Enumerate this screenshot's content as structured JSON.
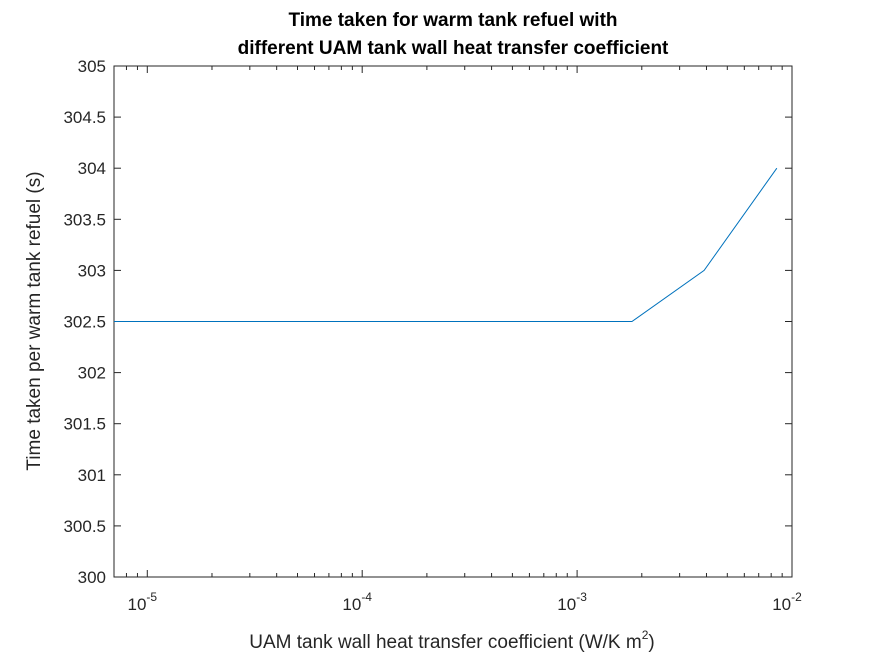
{
  "chart_data": {
    "type": "line",
    "title_lines": [
      "Time taken for warm tank refuel with",
      "different UAM tank wall heat transfer coefficient"
    ],
    "xlabel": "UAM tank wall heat transfer coefficient (W/K m",
    "xlabel_superscript": "2",
    "xlabel_suffix": ")",
    "ylabel": "Time taken per warm tank refuel (s)",
    "xscale": "log",
    "xlim": [
      7e-06,
      0.01
    ],
    "ylim": [
      300,
      305
    ],
    "x_ticks": [
      {
        "base": "10",
        "exp": "-5",
        "value": 1e-05
      },
      {
        "base": "10",
        "exp": "-4",
        "value": 0.0001
      },
      {
        "base": "10",
        "exp": "-3",
        "value": 0.001
      },
      {
        "base": "10",
        "exp": "-2",
        "value": 0.01
      }
    ],
    "y_ticks": [
      "300",
      "300.5",
      "301",
      "301.5",
      "302",
      "302.5",
      "303",
      "303.5",
      "304",
      "304.5",
      "305"
    ],
    "grid": false,
    "line_color": "#0072BD",
    "series": [
      {
        "x": [
          7e-06,
          0.0018,
          0.0039,
          0.0085
        ],
        "y": [
          302.5,
          302.5,
          303,
          304
        ]
      }
    ]
  }
}
